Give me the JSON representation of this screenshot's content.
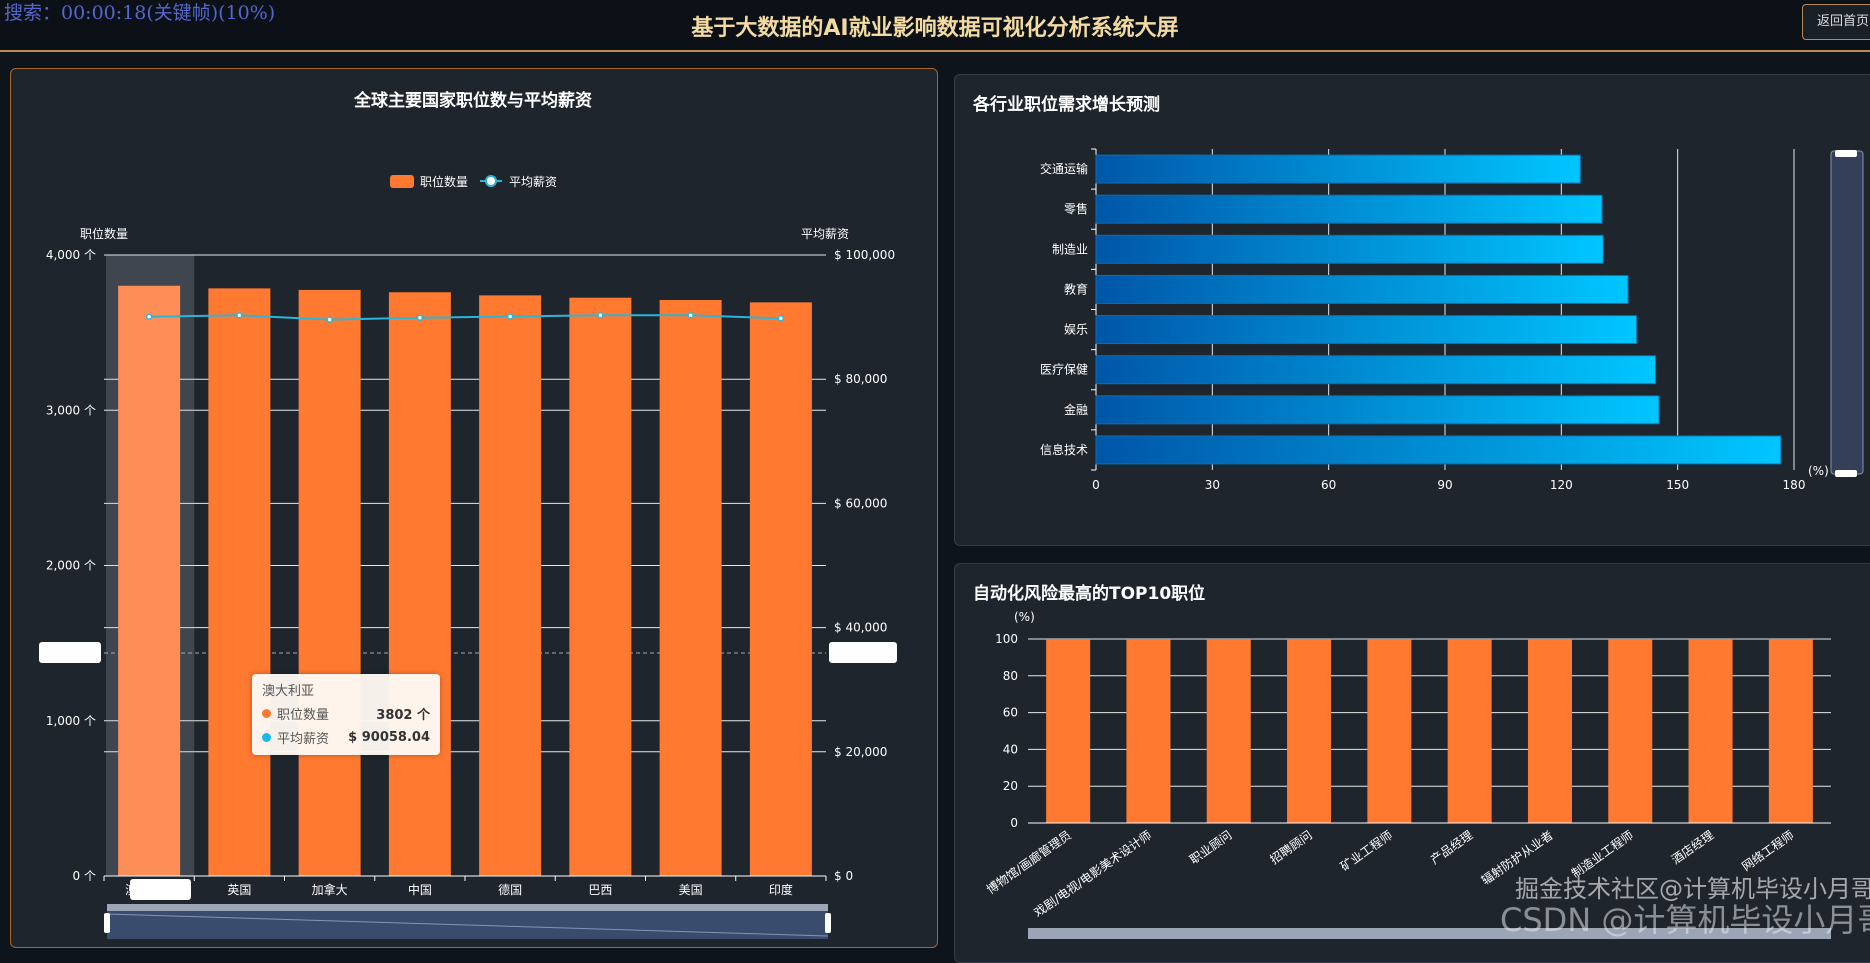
{
  "header": {
    "search_overlay": "搜索：00:00:18(关键帧)(10%)",
    "title": "基于大数据的AI就业影响数据可视化分析系统大屏",
    "back_button": "返回首页"
  },
  "colors": {
    "orange": "#ff7a30",
    "cyan": "#29b6d8",
    "blue_start": "#0056a8",
    "blue_end": "#00c6ff",
    "gold": "#f3dba0"
  },
  "watermark": {
    "text1": "CSDN @计算机毕设小月哥",
    "text2": "掘金技术社区@计算机毕设小月哥"
  },
  "chart_data": [
    {
      "type": "bar+line",
      "title": "全球主要国家职位数与平均薪资",
      "legend": [
        "职位数量",
        "平均薪资"
      ],
      "legend_position": "top",
      "ylabel_left": "职位数量",
      "ylabel_right": "平均薪资",
      "ylim_left": [
        0,
        4000
      ],
      "ylim_right": [
        0,
        100000
      ],
      "yticks_left": [
        "0 个",
        "1,000 个",
        "2,000 个",
        "3,000 个",
        "4,000 个"
      ],
      "yticks_right": [
        "$ 0",
        "$ 20,000",
        "$ 40,000",
        "$ 60,000",
        "$ 80,000",
        "$ 100,000"
      ],
      "categories": [
        "澳大利亚",
        "英国",
        "加拿大",
        "中国",
        "德国",
        "巴西",
        "美国",
        "印度"
      ],
      "series": [
        {
          "name": "职位数量",
          "type": "bar",
          "values": [
            3802,
            3785,
            3775,
            3760,
            3740,
            3725,
            3710,
            3695
          ]
        },
        {
          "name": "平均薪资",
          "type": "line",
          "values": [
            90058.04,
            90300,
            89600,
            89900,
            90100,
            90300,
            90300,
            89800
          ]
        }
      ],
      "tooltip": {
        "title": "澳大利亚",
        "rows": [
          {
            "label": "职位数量",
            "value": "3802 个"
          },
          {
            "label": "平均薪资",
            "value": "$ 90058.04"
          }
        ]
      },
      "grid": true
    },
    {
      "type": "bar-horizontal",
      "title": "各行业职位需求增长预测",
      "xlabel": "(%)",
      "xlim": [
        0,
        180
      ],
      "xticks": [
        "0",
        "30",
        "60",
        "90",
        "120",
        "150",
        "180"
      ],
      "categories": [
        "交通运输",
        "零售",
        "制造业",
        "教育",
        "娱乐",
        "医疗保健",
        "金融",
        "信息技术"
      ],
      "values": [
        124.9,
        130.5,
        130.8,
        137.2,
        139.4,
        144.3,
        145.2,
        176.6
      ],
      "grid": true
    },
    {
      "type": "bar",
      "title": "自动化风险最高的TOP10职位",
      "ylabel": "(%)",
      "ylim": [
        0,
        100
      ],
      "yticks": [
        "0",
        "20",
        "40",
        "60",
        "80",
        "100"
      ],
      "categories": [
        "博物馆/画廊管理员",
        "戏剧/电视/电影美术设计师",
        "职业顾问",
        "招聘顾问",
        "矿业工程师",
        "产品经理",
        "辐射防护从业者",
        "制造业工程师",
        "酒店经理",
        "网络工程师"
      ],
      "values": [
        100,
        100,
        100,
        100,
        100,
        100,
        100,
        100,
        100,
        100
      ],
      "grid": true
    }
  ]
}
